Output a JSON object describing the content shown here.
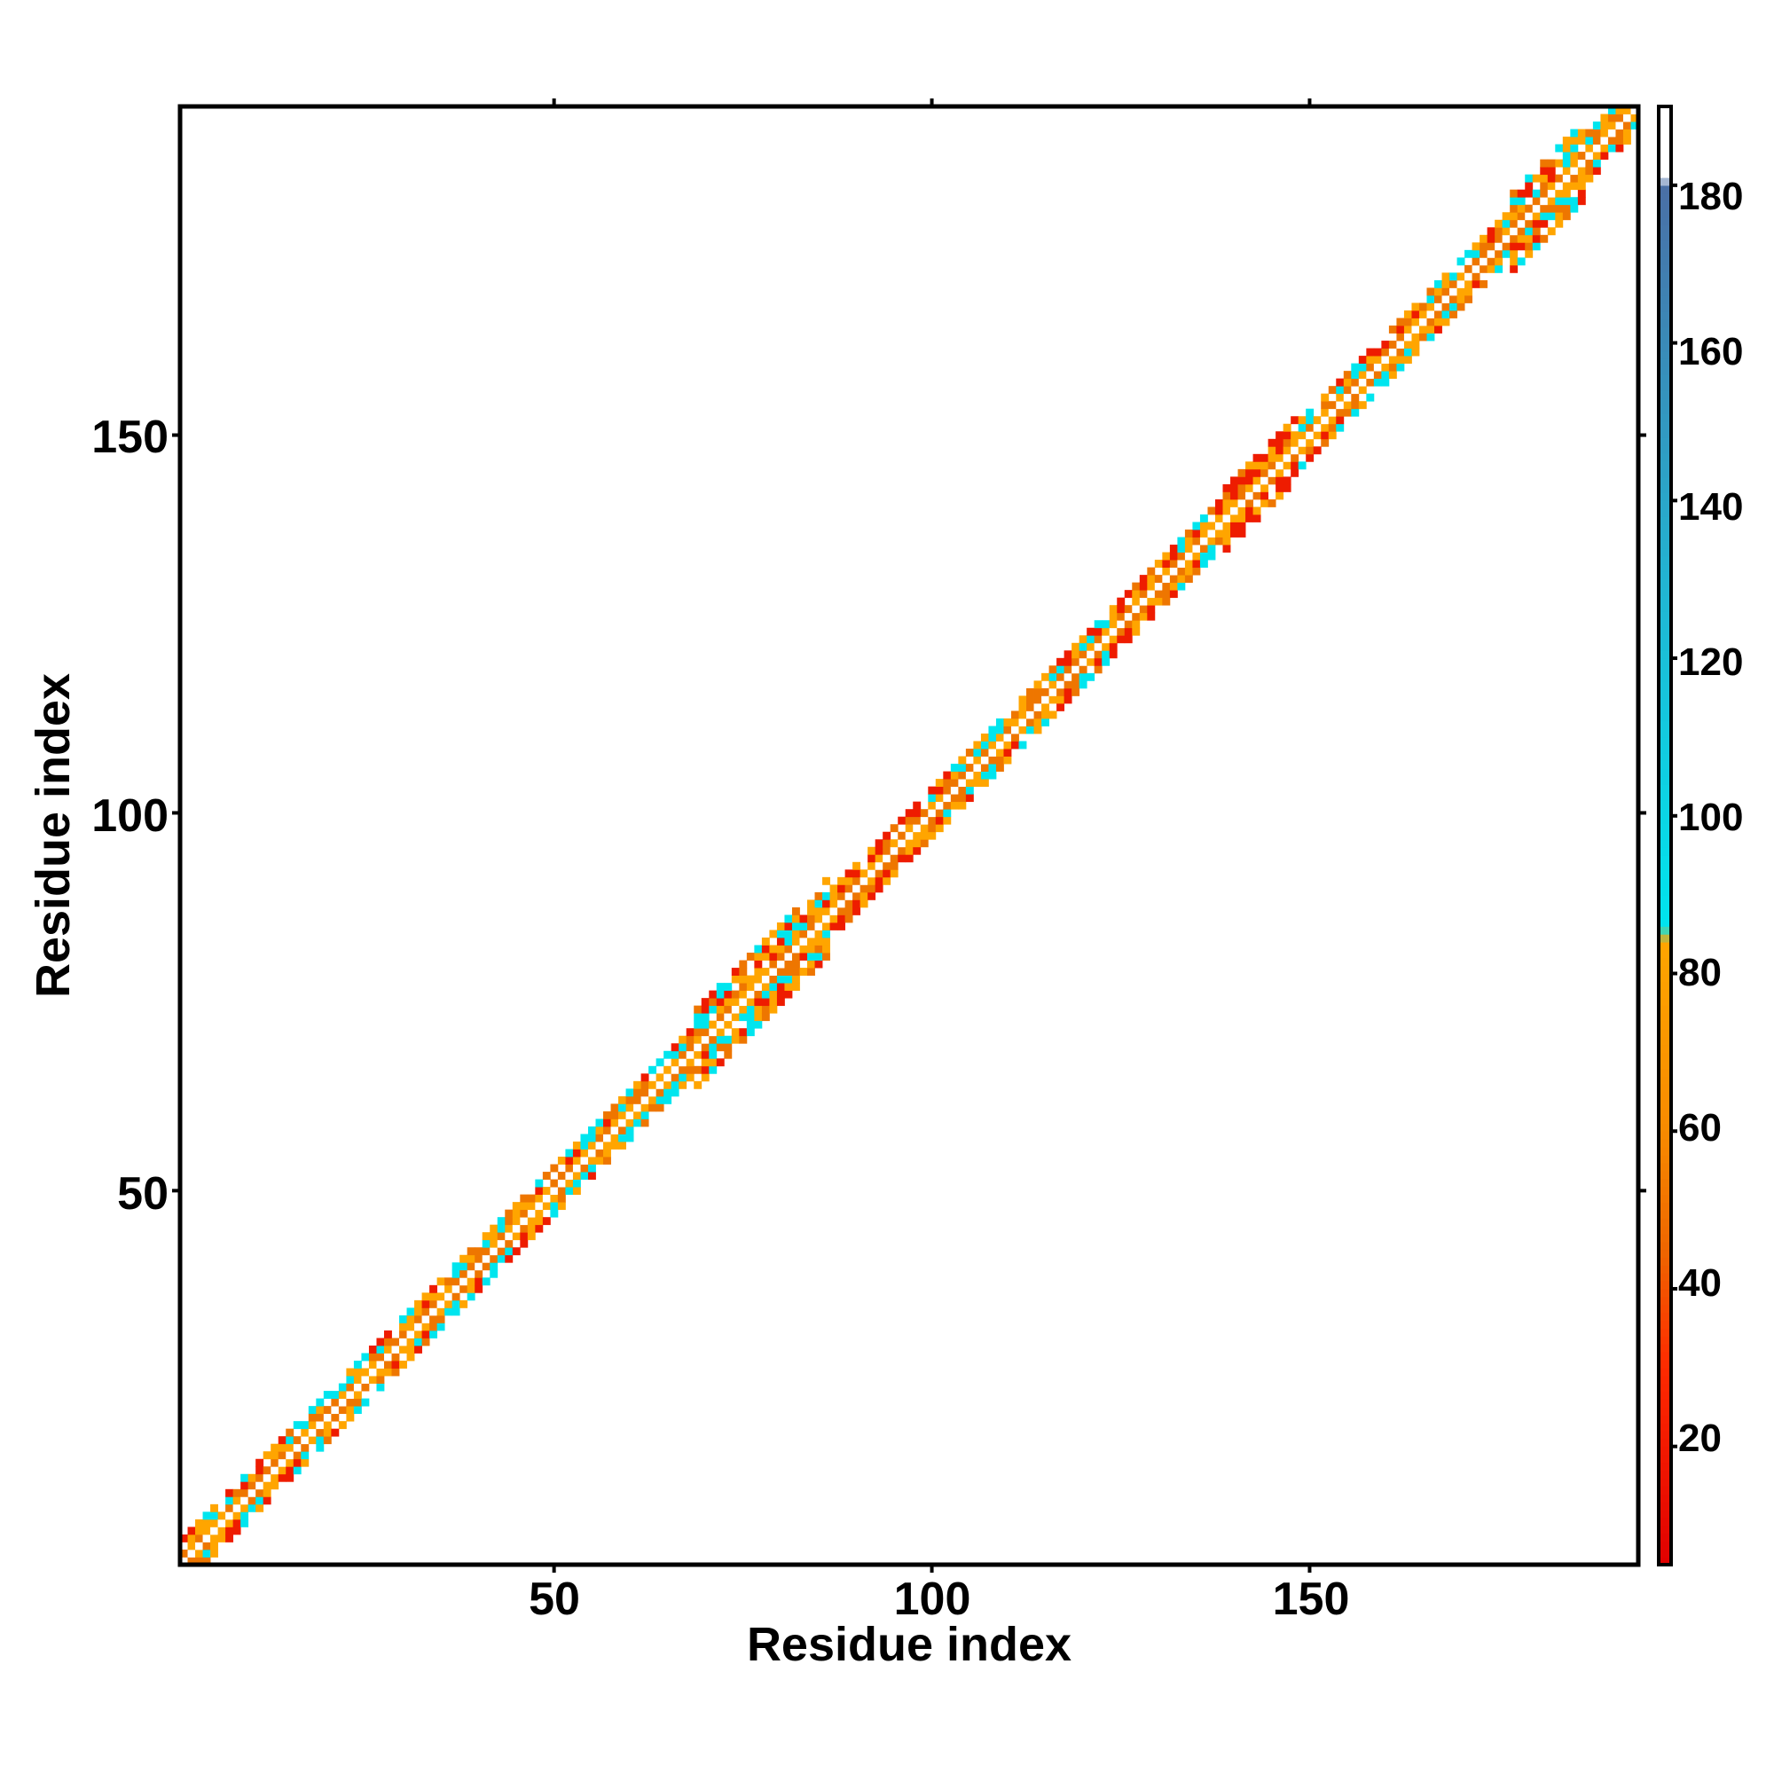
{
  "chart_data": {
    "type": "heatmap",
    "title": "",
    "xlabel": "Residue index",
    "ylabel": "Residue index",
    "xlim": [
      1,
      193
    ],
    "ylim": [
      1,
      193
    ],
    "x_ticks": [
      "50",
      "100",
      "150"
    ],
    "y_ticks": [
      "50",
      "100",
      "150"
    ],
    "colorbar": {
      "range": [
        5,
        190
      ],
      "tick_labels": [
        "20",
        "40",
        "60",
        "80",
        "100",
        "120",
        "140",
        "160",
        "180"
      ],
      "stops": [
        {
          "value": 5,
          "color": "#e00000"
        },
        {
          "value": 30,
          "color": "#ff2a00"
        },
        {
          "value": 45,
          "color": "#ee6600"
        },
        {
          "value": 60,
          "color": "#f78a00"
        },
        {
          "value": 84,
          "color": "#ffa500"
        },
        {
          "value": 86,
          "color": "#00e5ee"
        },
        {
          "value": 130,
          "color": "#22b4d2"
        },
        {
          "value": 180,
          "color": "#4a6fa6"
        },
        {
          "value": 181,
          "color": "#ffffff"
        },
        {
          "value": 190,
          "color": "#ffffff"
        }
      ]
    },
    "cell_colors": {
      "red": "#ee1c00",
      "orange_dark": "#ee7600",
      "orange": "#ffa500",
      "cyan": "#00e5ee",
      "white": "#ffffff"
    },
    "description_of_cells": "Band of angle values near the diagonal; |i-j| <= 1 dominant, wider bands around residues 68-86, 138-148, 176-186",
    "band_regions": [
      {
        "from": 1,
        "to": 68,
        "width": 3
      },
      {
        "from": 68,
        "to": 86,
        "width": 5
      },
      {
        "from": 86,
        "to": 138,
        "width": 3
      },
      {
        "from": 138,
        "to": 148,
        "width": 4
      },
      {
        "from": 148,
        "to": 176,
        "width": 3
      },
      {
        "from": 176,
        "to": 186,
        "width": 5
      },
      {
        "from": 186,
        "to": 193,
        "width": 3
      }
    ]
  }
}
